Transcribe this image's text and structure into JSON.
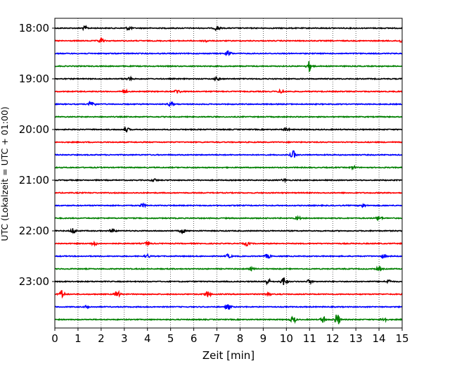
{
  "chart_data": {
    "type": "line",
    "subtype": "helicorder (seismogram drum plot)",
    "xlabel": "Zeit  [min]",
    "ylabel": "UTC (Lokalzeit = UTC + 01:00)",
    "xlim": [
      0,
      15
    ],
    "x_ticks": [
      "0",
      "1",
      "2",
      "3",
      "4",
      "5",
      "6",
      "7",
      "8",
      "9",
      "10",
      "11",
      "12",
      "13",
      "14",
      "15"
    ],
    "y_tick_labels": [
      "18:00",
      "19:00",
      "20:00",
      "21:00",
      "22:00",
      "23:00"
    ],
    "grid": "vertical dotted lines at each minute",
    "trace_colors": [
      "#000000",
      "#ff0000",
      "#0000ff",
      "#008000"
    ],
    "lines": [
      {
        "start": "18:00",
        "events": [
          [
            1.3,
            0.25
          ],
          [
            3.2,
            0.3
          ],
          [
            7.0,
            0.35
          ]
        ]
      },
      {
        "start": "18:15",
        "events": [
          [
            2.0,
            0.35
          ],
          [
            6.5,
            0.2
          ],
          [
            15.0,
            0.3
          ]
        ]
      },
      {
        "start": "18:30",
        "events": [
          [
            7.5,
            0.45
          ]
        ]
      },
      {
        "start": "18:45",
        "events": [
          [
            11.0,
            0.8
          ]
        ]
      },
      {
        "start": "19:00",
        "events": [
          [
            3.2,
            0.25
          ],
          [
            7.0,
            0.25
          ]
        ]
      },
      {
        "start": "19:15",
        "events": [
          [
            3.0,
            0.3
          ],
          [
            5.3,
            0.35
          ],
          [
            9.8,
            0.35
          ]
        ]
      },
      {
        "start": "19:30",
        "events": [
          [
            1.6,
            0.7
          ],
          [
            5.0,
            0.3
          ]
        ]
      },
      {
        "start": "19:45",
        "events": []
      },
      {
        "start": "20:00",
        "events": [
          [
            3.1,
            0.3
          ],
          [
            10.0,
            0.25
          ]
        ]
      },
      {
        "start": "20:15",
        "events": []
      },
      {
        "start": "20:30",
        "events": [
          [
            10.3,
            0.6
          ]
        ]
      },
      {
        "start": "20:45",
        "events": [
          [
            12.9,
            0.2
          ]
        ]
      },
      {
        "start": "21:00",
        "events": [
          [
            4.3,
            0.2
          ],
          [
            9.9,
            0.2
          ]
        ]
      },
      {
        "start": "21:15",
        "events": []
      },
      {
        "start": "21:30",
        "events": [
          [
            3.8,
            0.25
          ],
          [
            13.3,
            0.3
          ]
        ]
      },
      {
        "start": "21:45",
        "events": [
          [
            10.5,
            0.25
          ],
          [
            14.0,
            0.35
          ]
        ]
      },
      {
        "start": "22:00",
        "events": [
          [
            0.8,
            0.4
          ],
          [
            2.5,
            0.35
          ],
          [
            5.5,
            0.3
          ]
        ]
      },
      {
        "start": "22:15",
        "events": [
          [
            1.7,
            0.3
          ],
          [
            4.0,
            0.25
          ],
          [
            8.3,
            0.3
          ]
        ]
      },
      {
        "start": "22:30",
        "events": [
          [
            4.0,
            0.25
          ],
          [
            7.5,
            0.3
          ],
          [
            9.2,
            0.35
          ],
          [
            14.2,
            0.25
          ]
        ]
      },
      {
        "start": "22:45",
        "events": [
          [
            8.5,
            0.2
          ],
          [
            14.0,
            0.25
          ]
        ]
      },
      {
        "start": "23:00",
        "events": [
          [
            9.2,
            0.4
          ],
          [
            9.9,
            0.75
          ],
          [
            11.0,
            0.3
          ],
          [
            14.4,
            0.3
          ]
        ]
      },
      {
        "start": "23:15",
        "events": [
          [
            0.3,
            0.6
          ],
          [
            2.7,
            0.55
          ],
          [
            6.6,
            0.5
          ],
          [
            9.2,
            0.35
          ]
        ]
      },
      {
        "start": "23:30",
        "events": [
          [
            1.4,
            0.2
          ],
          [
            7.5,
            0.45
          ]
        ]
      },
      {
        "start": "23:45",
        "events": [
          [
            10.3,
            0.5
          ],
          [
            11.6,
            0.45
          ],
          [
            12.2,
            0.95
          ],
          [
            14.2,
            0.4
          ]
        ]
      }
    ]
  }
}
